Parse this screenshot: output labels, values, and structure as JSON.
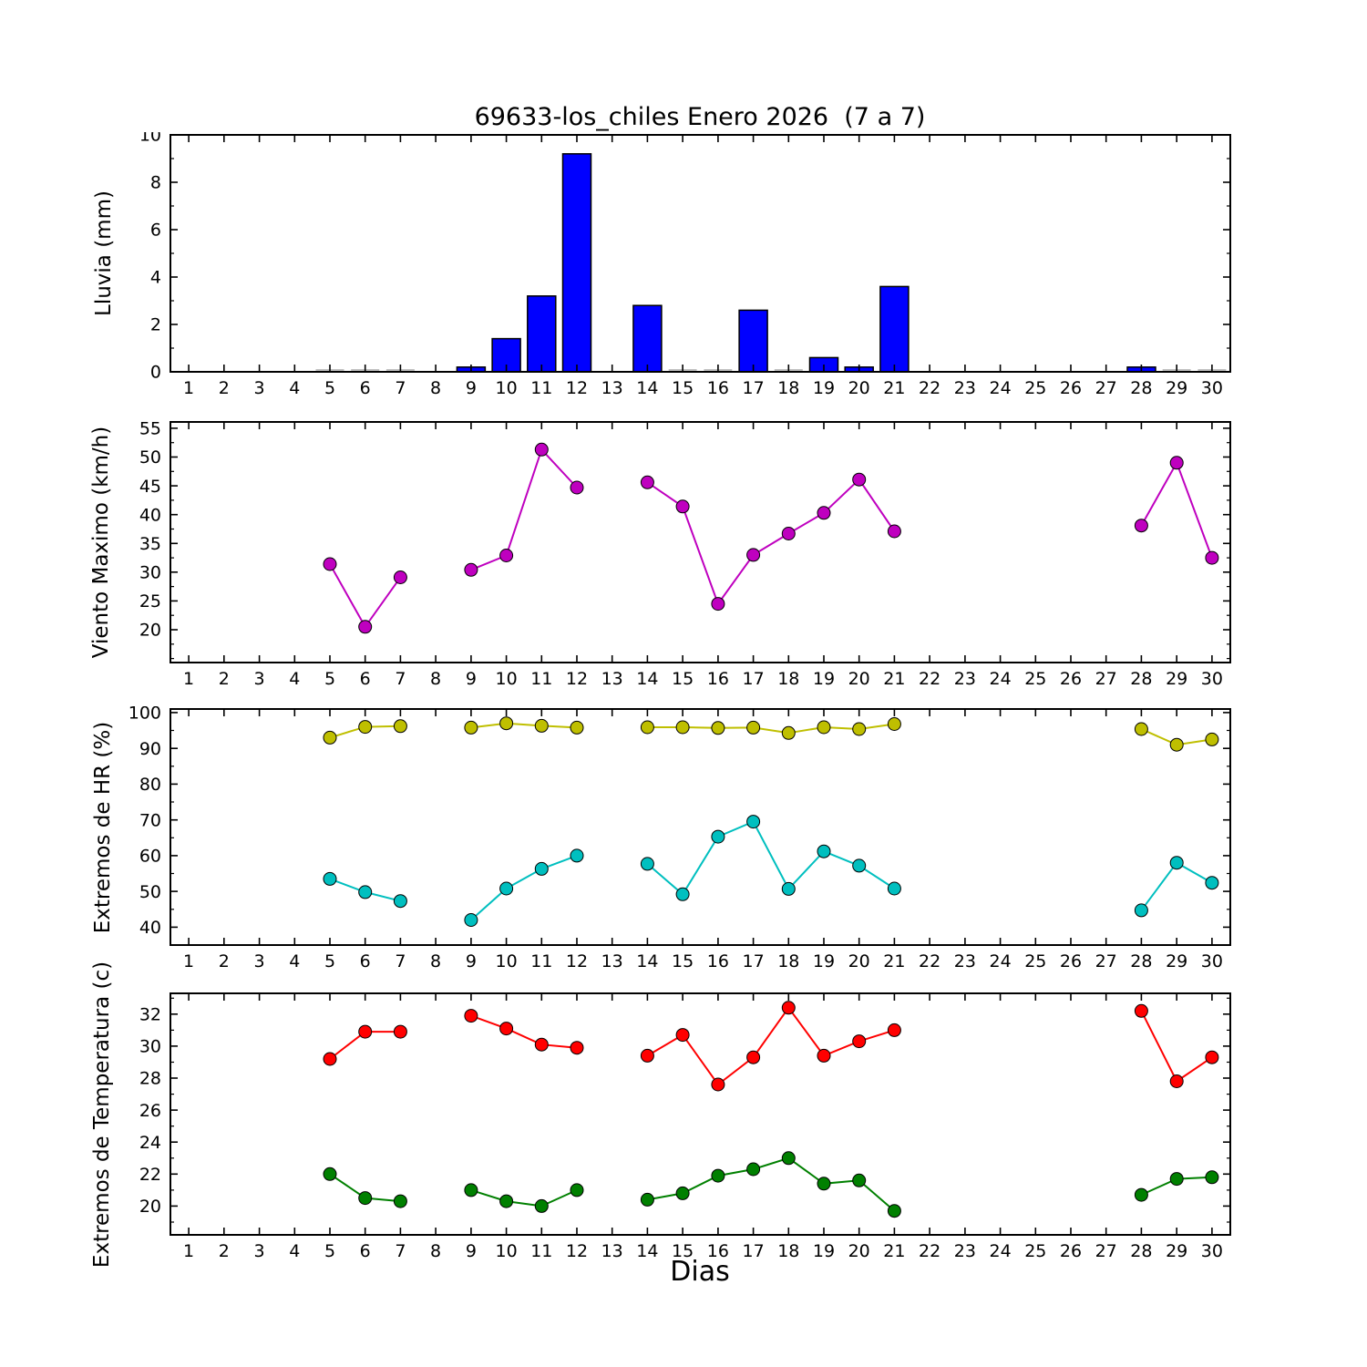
{
  "title": "69633-los_chiles Enero 2026  (7 a 7)",
  "xlabel": "Dias",
  "xtick_labels": [
    "1",
    "2",
    "3",
    "4",
    "5",
    "6",
    "7",
    "8",
    "9",
    "10",
    "11",
    "12",
    "13",
    "14",
    "15",
    "16",
    "17",
    "18",
    "19",
    "20",
    "21",
    "22",
    "23",
    "24",
    "25",
    "26",
    "27",
    "28",
    "29",
    "30"
  ],
  "chart_data": [
    {
      "type": "bar",
      "ylabel": "Lluvia (mm)",
      "ylim": [
        0,
        10
      ],
      "yticks": [
        0,
        2,
        4,
        6,
        8,
        10
      ],
      "yminor_step": 1,
      "xlim": [
        0.48,
        30.52
      ],
      "grid": false,
      "bar_width": 0.8,
      "series": [
        {
          "name": "lluvia",
          "color": "#0000ff",
          "x": [
            5,
            6,
            7,
            9,
            10,
            11,
            12,
            14,
            15,
            16,
            17,
            18,
            19,
            20,
            21,
            28,
            29,
            30
          ],
          "values": [
            0,
            0,
            0,
            0.2,
            1.4,
            3.2,
            9.2,
            2.8,
            0,
            0,
            2.6,
            0,
            0.6,
            0.2,
            3.6,
            0.2,
            0,
            0
          ]
        }
      ]
    },
    {
      "type": "line",
      "ylabel": "Viento Maximo (km/h)",
      "ylim": [
        14.3,
        56.1
      ],
      "yticks": [
        20,
        25,
        30,
        35,
        40,
        45,
        50,
        55
      ],
      "yminor_step": 2.5,
      "xlim": [
        0.48,
        30.52
      ],
      "grid": false,
      "series": [
        {
          "name": "viento_maximo",
          "color": "#bf00bf",
          "x": [
            5,
            6,
            7,
            9,
            10,
            11,
            12,
            14,
            15,
            16,
            17,
            18,
            19,
            20,
            21,
            28,
            29,
            30
          ],
          "values": [
            31.4,
            20.5,
            29.1,
            30.4,
            32.9,
            51.3,
            44.7,
            45.6,
            41.4,
            24.5,
            33.0,
            36.7,
            40.3,
            46.1,
            37.1,
            38.1,
            49.0,
            32.5
          ]
        }
      ]
    },
    {
      "type": "line",
      "ylabel": "Extremos de HR (%)",
      "ylim": [
        35,
        101
      ],
      "yticks": [
        40,
        50,
        60,
        70,
        80,
        90,
        100
      ],
      "yminor_step": 5,
      "xlim": [
        0.48,
        30.52
      ],
      "grid": false,
      "series": [
        {
          "name": "hr_max",
          "color": "#bfbf00",
          "x": [
            5,
            6,
            7,
            9,
            10,
            11,
            12,
            14,
            15,
            16,
            17,
            18,
            19,
            20,
            21,
            28,
            29,
            30
          ],
          "values": [
            93.0,
            96.0,
            96.2,
            95.8,
            97.0,
            96.3,
            95.8,
            95.9,
            95.9,
            95.7,
            95.8,
            94.3,
            95.9,
            95.4,
            96.8,
            95.4,
            91.0,
            92.5
          ]
        },
        {
          "name": "hr_min",
          "color": "#00bfbf",
          "x": [
            5,
            6,
            7,
            9,
            10,
            11,
            12,
            14,
            15,
            16,
            17,
            18,
            19,
            20,
            21,
            28,
            29,
            30
          ],
          "values": [
            53.5,
            49.8,
            47.3,
            42.0,
            50.8,
            56.3,
            60.0,
            57.7,
            49.2,
            65.3,
            69.5,
            50.7,
            61.2,
            57.2,
            50.8,
            44.7,
            58.0,
            52.4
          ]
        }
      ]
    },
    {
      "type": "line",
      "ylabel": "Extremos de Temperatura (c)",
      "ylim": [
        18.2,
        33.3
      ],
      "yticks": [
        20,
        22,
        24,
        26,
        28,
        30,
        32
      ],
      "yminor_step": 1,
      "xlim": [
        0.48,
        30.52
      ],
      "grid": false,
      "series": [
        {
          "name": "temp_max",
          "color": "#ff0000",
          "x": [
            5,
            6,
            7,
            9,
            10,
            11,
            12,
            14,
            15,
            16,
            17,
            18,
            19,
            20,
            21,
            28,
            29,
            30
          ],
          "values": [
            29.2,
            30.9,
            30.9,
            31.9,
            31.1,
            30.1,
            29.9,
            29.4,
            30.7,
            27.6,
            29.3,
            32.4,
            29.4,
            30.3,
            31.0,
            32.2,
            27.8,
            29.3
          ]
        },
        {
          "name": "temp_min",
          "color": "#008000",
          "x": [
            5,
            6,
            7,
            9,
            10,
            11,
            12,
            14,
            15,
            16,
            17,
            18,
            19,
            20,
            21,
            28,
            29,
            30
          ],
          "values": [
            22.0,
            20.5,
            20.3,
            21.0,
            20.3,
            20.0,
            21.0,
            20.4,
            20.8,
            21.9,
            22.3,
            23.0,
            21.4,
            21.6,
            19.7,
            20.7,
            21.7,
            21.8
          ]
        }
      ]
    }
  ]
}
